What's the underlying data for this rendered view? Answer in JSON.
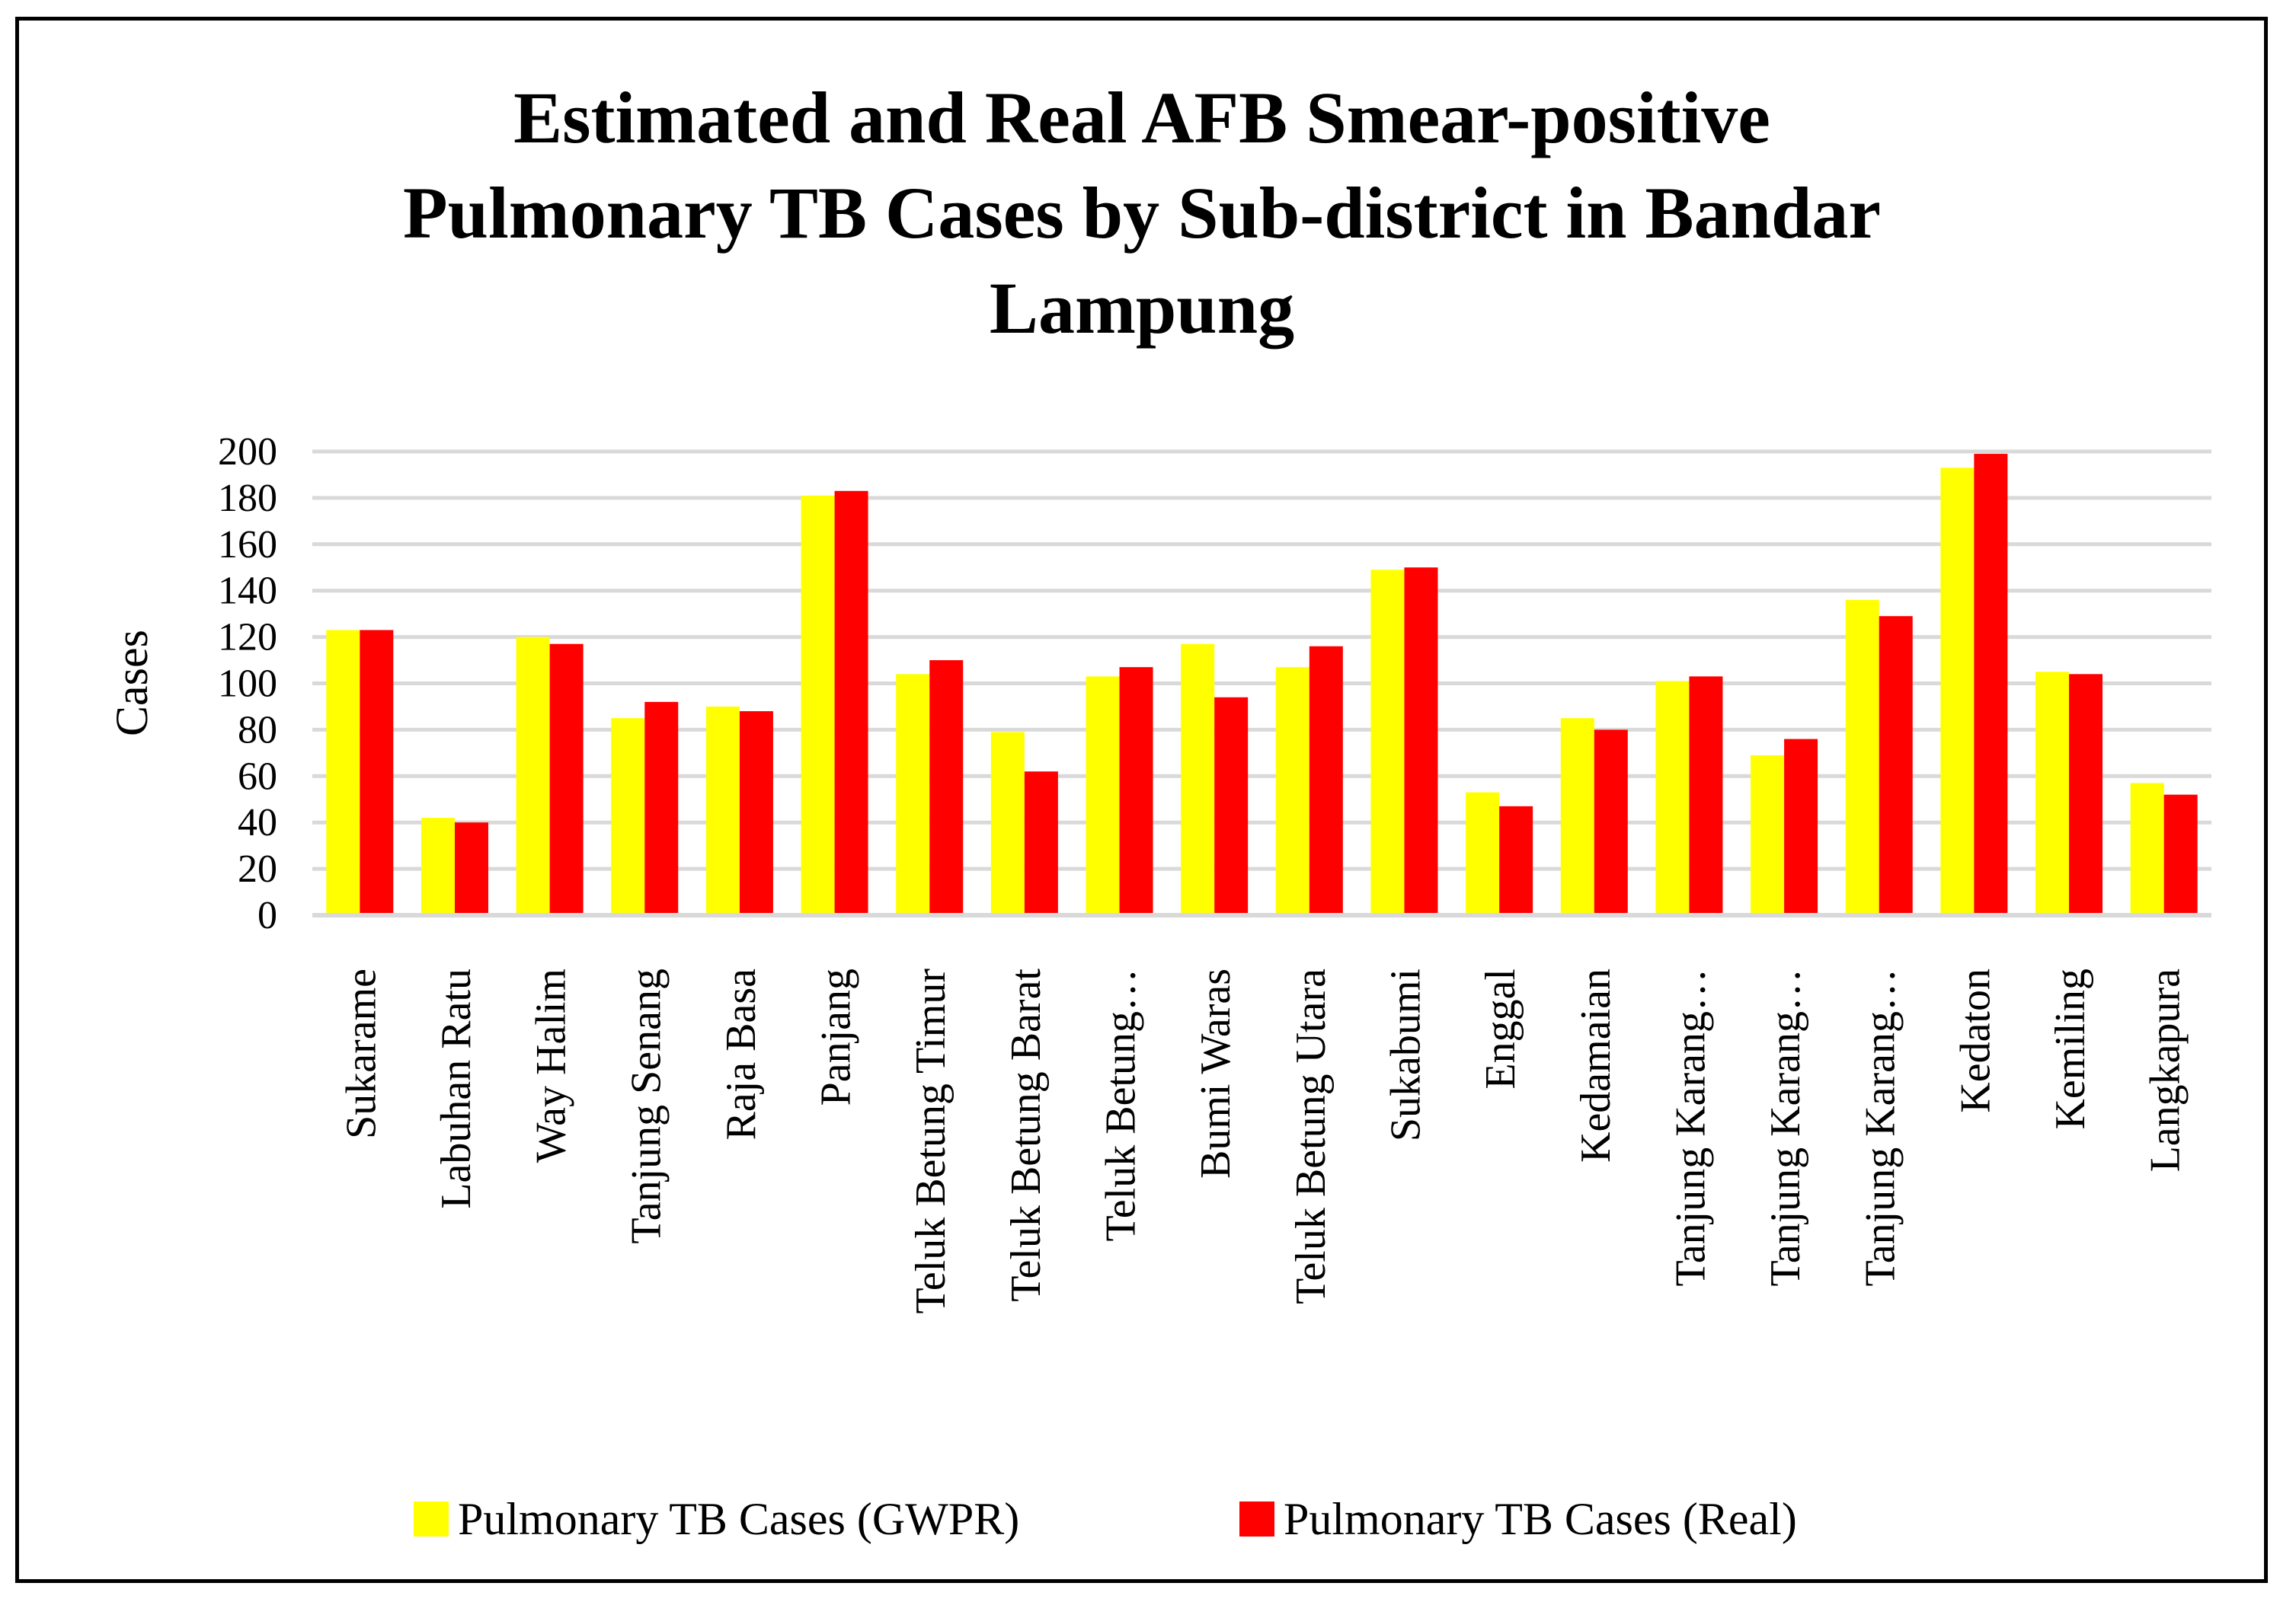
{
  "chart_data": {
    "type": "bar",
    "title": "Estimated and Real AFB Smear-positive Pulmonary TB Cases by Sub-district in Bandar Lampung",
    "title_lines": [
      "Estimated and Real AFB Smear-positive",
      "Pulmonary TB Cases by Sub-district in Bandar",
      "Lampung"
    ],
    "xlabel": "",
    "ylabel": "Cases",
    "ylim": [
      0,
      200
    ],
    "yticks": [
      0,
      20,
      40,
      60,
      80,
      100,
      120,
      140,
      160,
      180,
      200
    ],
    "grid": true,
    "legend_position": "bottom",
    "categories": [
      "Sukarame",
      "Labuhan Ratu",
      "Way Halim",
      "Tanjung Senang",
      "Raja Basa",
      "Panjang",
      "Teluk Betung Timur",
      "Teluk Betung Barat",
      "Teluk Betung…",
      "Bumi Waras",
      "Teluk Betung Utara",
      "Sukabumi",
      "Enggal",
      "Kedamaian",
      "Tanjung Karang…",
      "Tanjung Karang…",
      "Tanjung Karang…",
      "Kedaton",
      "Kemiling",
      "Langkapura"
    ],
    "series": [
      {
        "name": "Pulmonary TB Cases (GWPR)",
        "color": "#FFFF00",
        "values": [
          123,
          42,
          120,
          85,
          90,
          181,
          104,
          79,
          103,
          117,
          107,
          149,
          53,
          85,
          101,
          69,
          136,
          193,
          105,
          57
        ]
      },
      {
        "name": "Pulmonary TB Cases (Real)",
        "color": "#FF0000",
        "values": [
          123,
          40,
          117,
          92,
          88,
          183,
          110,
          62,
          107,
          94,
          116,
          150,
          47,
          80,
          103,
          76,
          129,
          199,
          104,
          52
        ]
      }
    ]
  }
}
